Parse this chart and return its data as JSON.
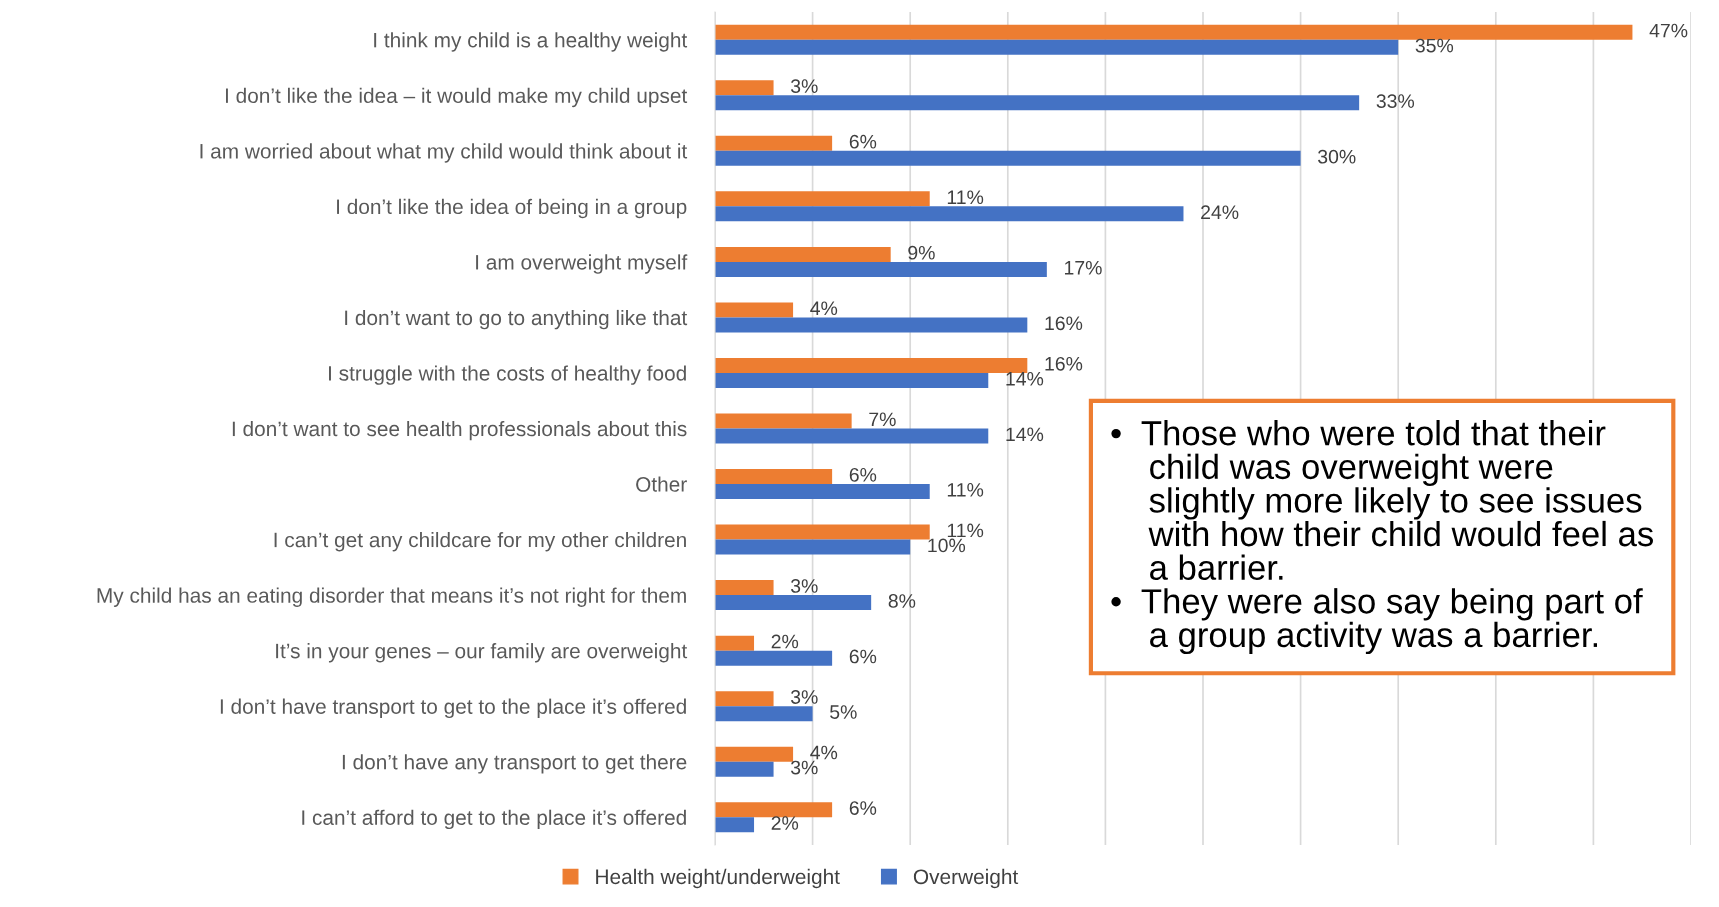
{
  "chart_data": {
    "type": "bar",
    "orientation": "horizontal",
    "categories": [
      "I think my child is a healthy weight",
      "I don’t like the idea – it would make my child upset",
      "I am worried about what my child would think about it",
      "I don’t like the idea of being in a group",
      "I am overweight myself",
      "I don’t want to go to anything like that",
      "I struggle with the costs of healthy food",
      "I don’t want to see health professionals about this",
      "Other",
      "I can’t get any childcare for my other children",
      "My child has an eating disorder that means it’s not right for them",
      "It’s in your genes – our family are overweight",
      "I don’t have transport to get to the place it’s offered",
      "I don’t have any transport to get there",
      "I can’t afford to get to the place it’s offered"
    ],
    "series": [
      {
        "name": "Health weight/underweight",
        "color": "#ed7d31",
        "values": [
          47,
          3,
          6,
          11,
          9,
          4,
          16,
          7,
          6,
          11,
          3,
          2,
          3,
          4,
          6
        ],
        "value_labels": [
          "47%",
          "3%",
          "6%",
          "11%",
          "9%",
          "4%",
          "16%",
          "7%",
          "6%",
          "11%",
          "3%",
          "2%",
          "3%",
          "4%",
          "6%"
        ]
      },
      {
        "name": "Overweight",
        "color": "#4472c4",
        "values": [
          35,
          33,
          30,
          24,
          17,
          16,
          14,
          14,
          11,
          10,
          8,
          6,
          5,
          3,
          2
        ],
        "value_labels": [
          "35%",
          "33%",
          "30%",
          "24%",
          "17%",
          "16%",
          "14%",
          "14%",
          "11%",
          "10%",
          "8%",
          "6%",
          "5%",
          "3%",
          "2%"
        ]
      }
    ],
    "xlim": [
      0,
      50
    ],
    "xticks": [
      {
        "value": 0,
        "label": null
      },
      {
        "value": 5,
        "label": null
      },
      {
        "value": 10,
        "label": null
      },
      {
        "value": 15,
        "label": null
      },
      {
        "value": 20,
        "label": null
      },
      {
        "value": 25,
        "label": null
      },
      {
        "value": 30,
        "label": null
      },
      {
        "value": 35,
        "label": null
      },
      {
        "value": 40,
        "label": null
      },
      {
        "value": 45,
        "label": null
      },
      {
        "value": 50,
        "label": null
      }
    ],
    "tick_labels": "y",
    "grid": "x",
    "legend": "bottom",
    "annotations": [
      "•  Those who were told that their\n    child was overweight were\n    slightly more likely to see issues\n    with how their child would feel as\n    a barrier.",
      "•  They were also say being part of\n    a group activity was a barrier."
    ]
  }
}
